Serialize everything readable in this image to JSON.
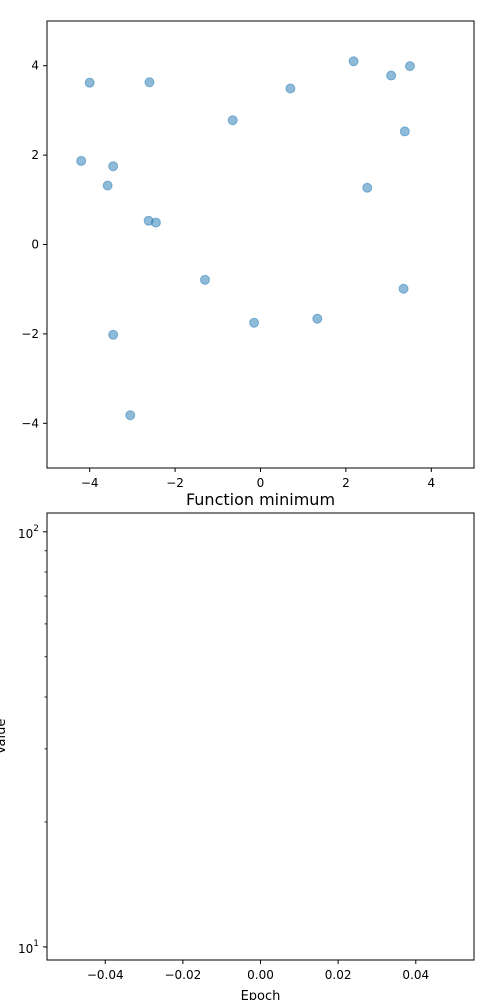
{
  "chart_data": [
    {
      "type": "scatter",
      "title": "",
      "xlabel": "",
      "ylabel": "",
      "xlim": [
        -5,
        5
      ],
      "ylim": [
        -5,
        5
      ],
      "xticks": [
        -4,
        -2,
        0,
        2,
        4
      ],
      "yticks": [
        -4,
        -2,
        0,
        2,
        4
      ],
      "xtick_labels": [
        "−4",
        "−2",
        "0",
        "2",
        "4"
      ],
      "ytick_labels": [
        "−4",
        "−2",
        "0",
        "2",
        "4"
      ],
      "grid": false,
      "point_color": "#1f77b4",
      "point_alpha": 0.5,
      "points": [
        {
          "x": -4.0,
          "y": 3.62
        },
        {
          "x": -2.6,
          "y": 3.63
        },
        {
          "x": 0.7,
          "y": 3.49
        },
        {
          "x": 2.18,
          "y": 4.1
        },
        {
          "x": 3.06,
          "y": 3.78
        },
        {
          "x": 3.5,
          "y": 3.99
        },
        {
          "x": -0.65,
          "y": 2.78
        },
        {
          "x": 3.38,
          "y": 2.53
        },
        {
          "x": -4.2,
          "y": 1.87
        },
        {
          "x": -3.45,
          "y": 1.75
        },
        {
          "x": -3.58,
          "y": 1.32
        },
        {
          "x": 2.5,
          "y": 1.27
        },
        {
          "x": -2.62,
          "y": 0.53
        },
        {
          "x": -2.45,
          "y": 0.49
        },
        {
          "x": -1.3,
          "y": -0.79
        },
        {
          "x": 3.35,
          "y": -0.99
        },
        {
          "x": 1.33,
          "y": -1.66
        },
        {
          "x": -0.15,
          "y": -1.75
        },
        {
          "x": -3.45,
          "y": -2.02
        },
        {
          "x": -3.05,
          "y": -3.82
        }
      ]
    },
    {
      "type": "line",
      "title": "Function minimum",
      "xlabel": "Epoch",
      "ylabel": "Value",
      "xlim": [
        -0.055,
        0.055
      ],
      "ylim": [
        9.3,
        111
      ],
      "yscale": "log",
      "xticks": [
        -0.04,
        -0.02,
        0.0,
        0.02,
        0.04
      ],
      "xtick_labels": [
        "−0.04",
        "−0.02",
        "0.00",
        "0.02",
        "0.04"
      ],
      "yticks": [
        10,
        100
      ],
      "ytick_labels": [
        {
          "base": "10",
          "exp": "1"
        },
        {
          "base": "10",
          "exp": "2"
        }
      ],
      "grid": false,
      "series": []
    }
  ]
}
